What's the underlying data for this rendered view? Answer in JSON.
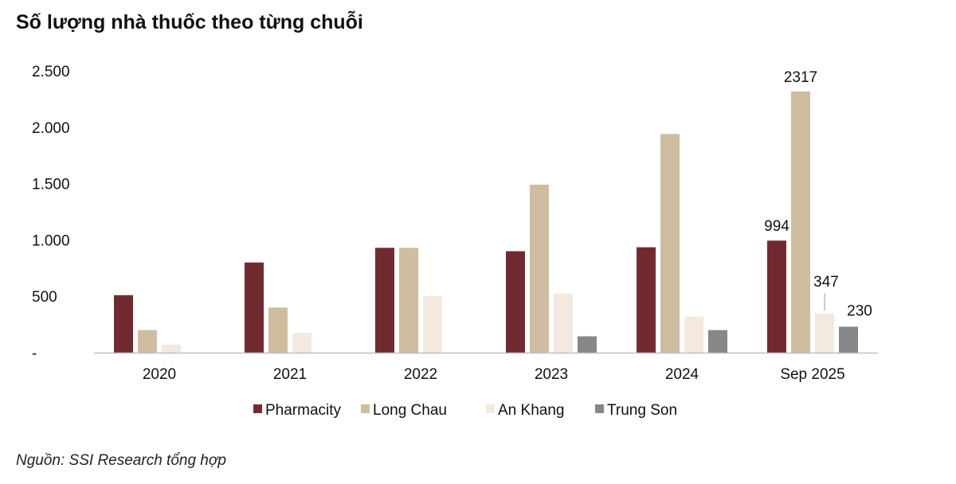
{
  "page_title": "Số lượng nhà thuốc theo từng chuỗi",
  "source": "Nguồn: SSI Research tổng hợp",
  "colors": {
    "Pharmacity": "#722a31",
    "Long Chau": "#cfbda0",
    "An Khang": "#f3e9de",
    "Trung Son": "#878787",
    "axis": "#bfbfbf"
  },
  "chart_data": {
    "type": "bar",
    "title": "Số lượng nhà thuốc theo từng chuỗi",
    "categories": [
      "2020",
      "2021",
      "2022",
      "2023",
      "2024",
      "Sep 2025"
    ],
    "series": [
      {
        "name": "Pharmacity",
        "values": [
          510,
          800,
          930,
          900,
          935,
          994
        ]
      },
      {
        "name": "Long Chau",
        "values": [
          200,
          400,
          930,
          1490,
          1940,
          2317
        ]
      },
      {
        "name": "An Khang",
        "values": [
          70,
          175,
          500,
          525,
          320,
          347
        ]
      },
      {
        "name": "Trung Son",
        "values": [
          0,
          0,
          0,
          145,
          200,
          230
        ]
      }
    ],
    "ylim": [
      0,
      2500
    ],
    "yticks": [
      0,
      500,
      1000,
      1500,
      2000,
      2500
    ],
    "ytick_labels": [
      "-",
      "500",
      "1.000",
      "1.500",
      "2.000",
      "2.500"
    ],
    "data_labels": [
      {
        "series": "Pharmacity",
        "category": "Sep 2025",
        "text": "994"
      },
      {
        "series": "Long Chau",
        "category": "Sep 2025",
        "text": "2317"
      },
      {
        "series": "An Khang",
        "category": "Sep 2025",
        "text": "347"
      },
      {
        "series": "Trung Son",
        "category": "Sep 2025",
        "text": "230"
      }
    ],
    "legend_position": "bottom",
    "grid": false,
    "xlabel": "",
    "ylabel": ""
  }
}
